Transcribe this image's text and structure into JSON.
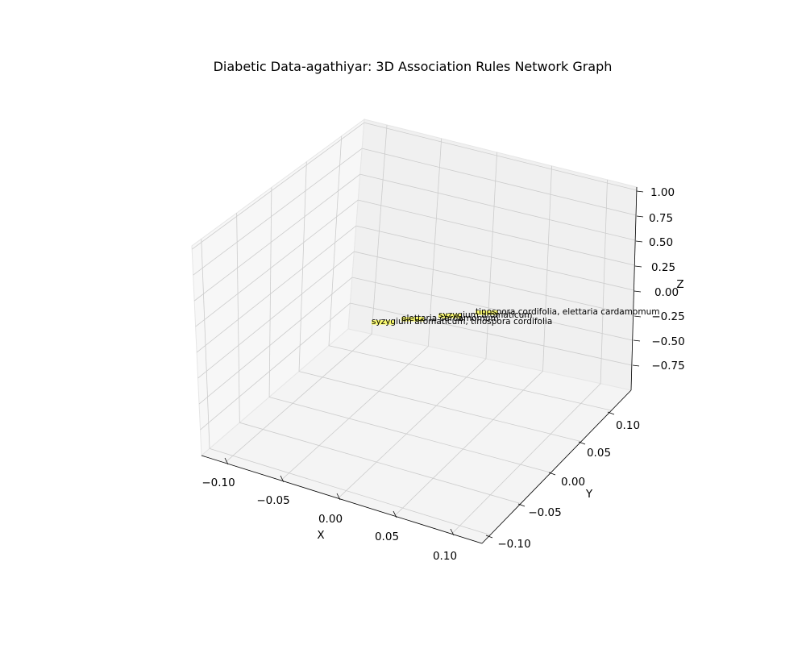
{
  "chart_data": {
    "type": "scatter",
    "title": "Diabetic Data-agathiyar:  3D Association Rules Network Graph",
    "xlabel": "X",
    "ylabel": "Y",
    "zlabel": "Z",
    "projection": "3d",
    "grid": true,
    "xlim": [
      -0.11,
      0.11
    ],
    "ylim": [
      -0.11,
      0.11
    ],
    "zlim": [
      -1.0,
      1.0
    ],
    "x_ticks": [
      "−0.10",
      "−0.05",
      "0.00",
      "0.05",
      "0.10"
    ],
    "y_ticks": [
      "−0.10",
      "−0.05",
      "0.00",
      "0.05",
      "0.10"
    ],
    "z_ticks": [
      "−0.75",
      "−0.50",
      "−0.25",
      "0.00",
      "0.25",
      "0.50",
      "0.75",
      "1.00"
    ],
    "nodes": [
      {
        "label": "tinospora cordifolia, elettaria cardamomum",
        "x": 0,
        "y": 0,
        "z": 0
      },
      {
        "label": "syzygium aromaticum",
        "x": 0,
        "y": 0,
        "z": 0
      },
      {
        "label": "elettaria cardamomum",
        "x": 0,
        "y": 0,
        "z": 0
      },
      {
        "label": "syzygium aromaticum, tinospora cordifolia",
        "x": 0,
        "y": 0,
        "z": 0
      }
    ],
    "node_color": "#ffff00",
    "pane_colors": [
      "#f2f2f2",
      "#f7f7f7",
      "#fafafa"
    ],
    "grid_color": "#cccccc"
  }
}
